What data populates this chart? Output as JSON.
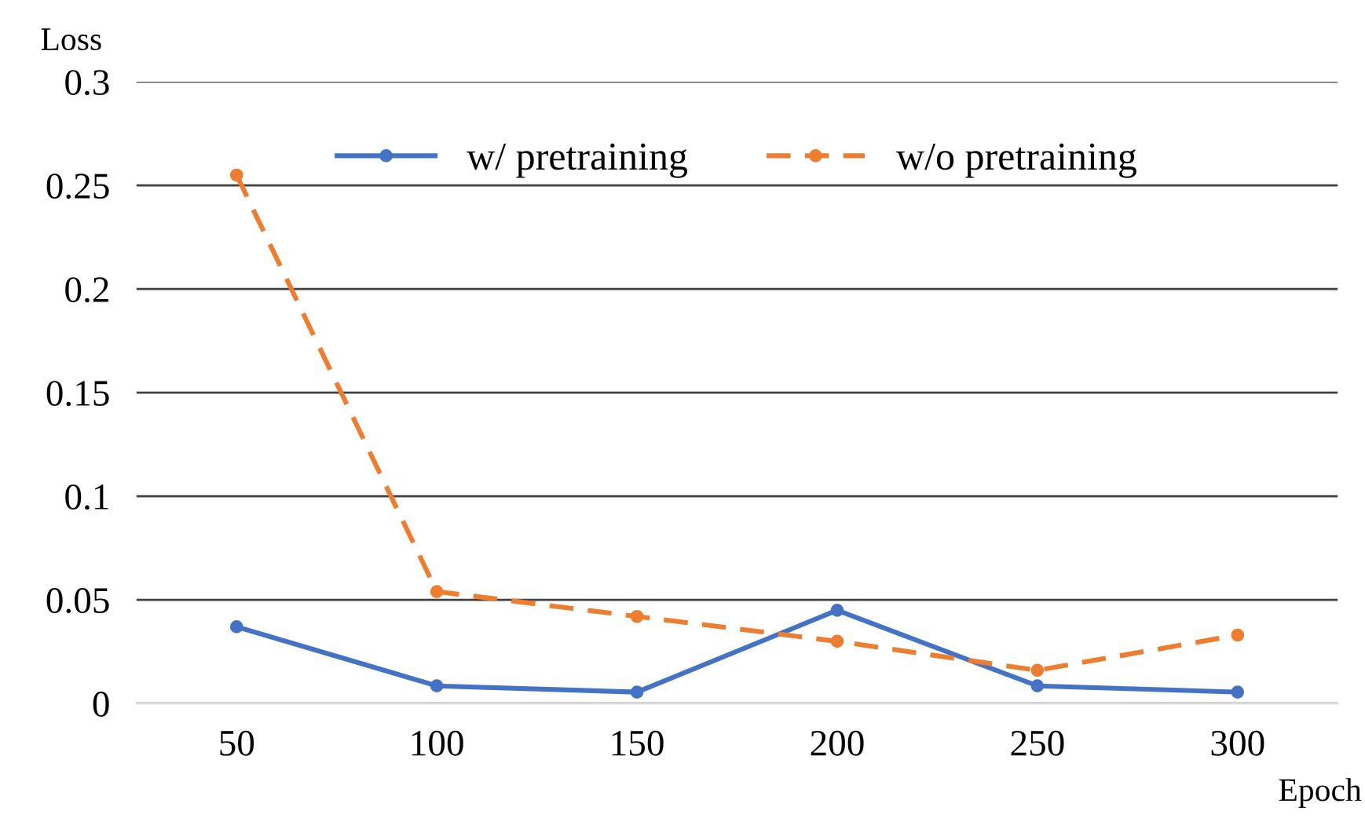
{
  "chart_data": {
    "type": "line",
    "xlabel": "Epoch",
    "ylabel": "Loss",
    "categories": [
      "50",
      "100",
      "150",
      "200",
      "250",
      "300"
    ],
    "series": [
      {
        "name": "w/ pretraining",
        "color": "#4472c4",
        "line_style": "solid",
        "values": [
          0.037,
          0.0085,
          0.0055,
          0.045,
          0.0085,
          0.0055
        ]
      },
      {
        "name": "w/o pretraining",
        "color": "#ed7d31",
        "line_style": "dashed",
        "values": [
          0.255,
          0.054,
          0.042,
          0.03,
          0.016,
          0.033
        ]
      }
    ],
    "ylim": [
      0,
      0.3
    ],
    "yticks": [
      0,
      0.05,
      0.1,
      0.15,
      0.2,
      0.25,
      0.3
    ],
    "grid": "y",
    "legend": "top",
    "marker": "circle"
  }
}
